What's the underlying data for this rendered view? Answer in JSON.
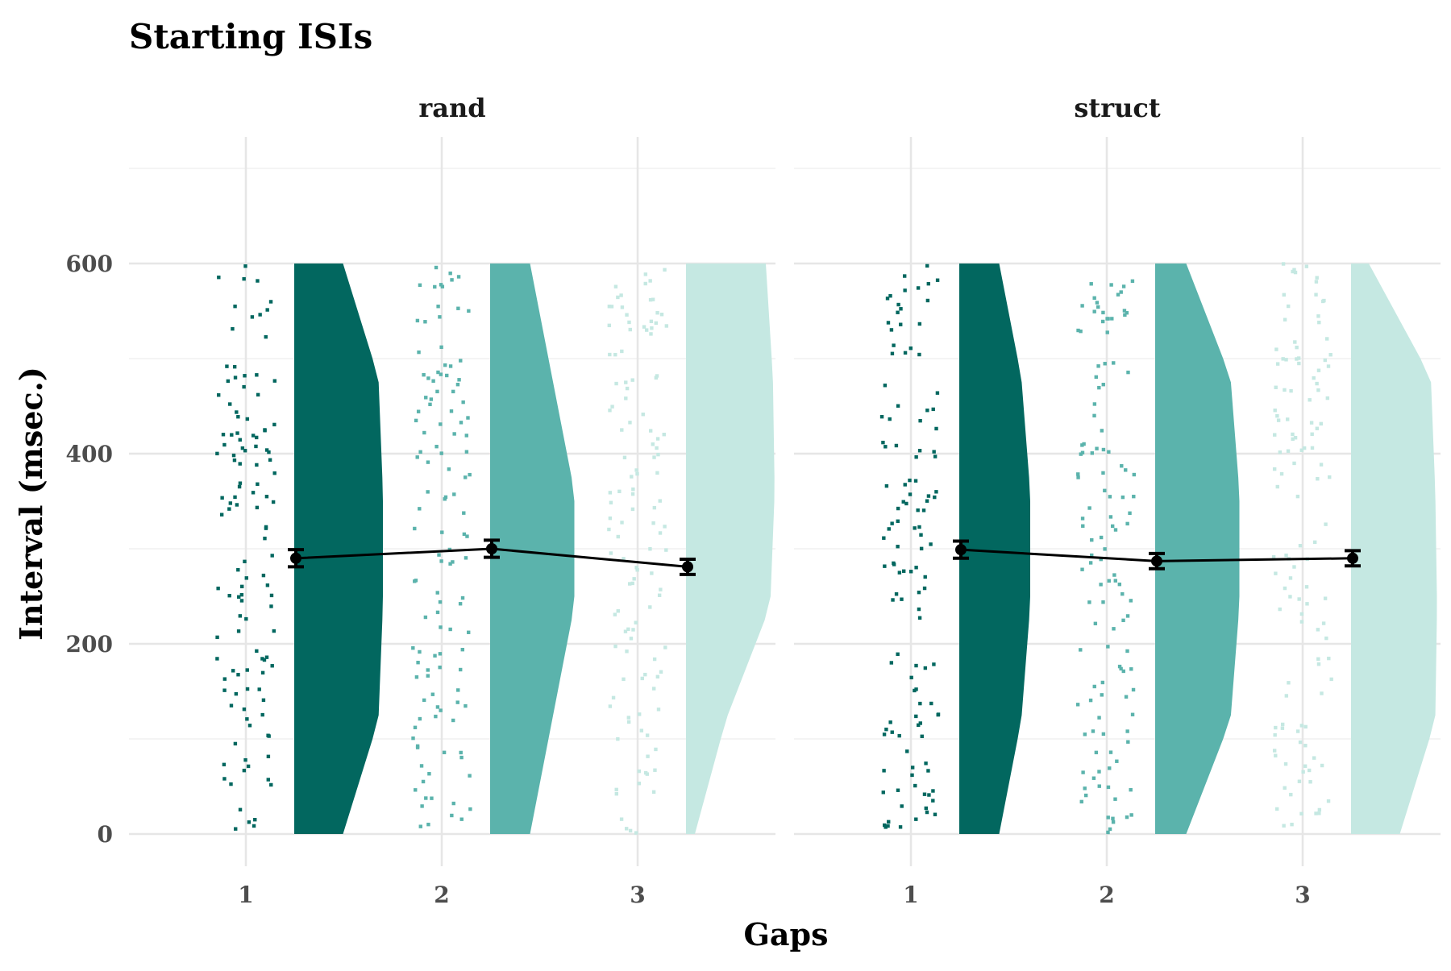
{
  "chart_data": {
    "type": "raincloud",
    "title": "Starting ISIs",
    "xlabel": "Gaps",
    "ylabel": "Interval (msec.)",
    "ylim": [
      -30,
      720
    ],
    "yticks": [
      0,
      200,
      400,
      600
    ],
    "categories": [
      "1",
      "2",
      "3"
    ],
    "colors": [
      "#02675f",
      "#5bb3ac",
      "#c5e8e2"
    ],
    "grid": true,
    "facets": [
      {
        "label": "rand",
        "means": [
          290,
          300,
          281
        ],
        "errors": [
          9,
          9,
          8
        ],
        "density_widths": [
          [
            0.55,
            0.95,
            1.0,
            1.0,
            0.95,
            0.55
          ],
          [
            0.45,
            0.7,
            0.95,
            0.95,
            0.7,
            0.45
          ],
          [
            0.1,
            0.45,
            0.95,
            1.0,
            0.98,
            0.9
          ]
        ],
        "jitter_points": [
          120,
          120,
          120
        ]
      },
      {
        "label": "struct",
        "means": [
          299,
          287,
          290
        ],
        "errors": [
          9,
          8,
          8
        ],
        "density_widths": [
          [
            0.45,
            0.7,
            0.8,
            0.8,
            0.7,
            0.45
          ],
          [
            0.35,
            0.85,
            0.95,
            0.95,
            0.85,
            0.35
          ],
          [
            0.55,
            0.95,
            0.97,
            0.95,
            0.9,
            0.2
          ]
        ],
        "jitter_points": [
          120,
          120,
          120
        ]
      }
    ]
  }
}
